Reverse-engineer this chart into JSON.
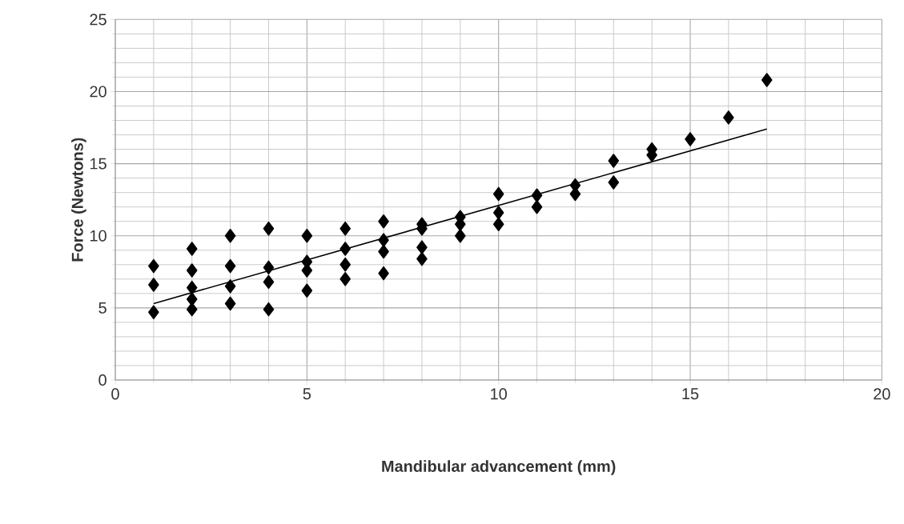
{
  "chart_data": {
    "type": "scatter",
    "xlabel": "Mandibular  advancement (mm)",
    "ylabel": "Force (Newtons)",
    "xlim": [
      0,
      20
    ],
    "xticks": [
      0,
      5,
      10,
      15,
      20
    ],
    "ylim": [
      0,
      25
    ],
    "yticks": [
      0,
      5,
      10,
      15,
      20,
      25
    ],
    "grid": true,
    "marker": "diamond",
    "series": [
      {
        "color": "#000000",
        "x": [
          1,
          1,
          1,
          2,
          2,
          2,
          2,
          2,
          3,
          3,
          3,
          3,
          4,
          4,
          4,
          4,
          5,
          5,
          5,
          5,
          6,
          6,
          6,
          6,
          7,
          7,
          7,
          7,
          8,
          8,
          8,
          8,
          9,
          9,
          9,
          10,
          10,
          10,
          11,
          11,
          12,
          12,
          13,
          13,
          14,
          14,
          15,
          16,
          17
        ],
        "values": [
          7.9,
          6.6,
          4.7,
          9.1,
          7.6,
          6.4,
          5.6,
          4.9,
          10.0,
          7.9,
          6.5,
          5.3,
          10.5,
          7.8,
          6.8,
          4.9,
          10.0,
          8.2,
          7.6,
          6.2,
          10.5,
          9.1,
          8.0,
          7.0,
          11.0,
          9.7,
          8.9,
          7.4,
          10.8,
          10.5,
          9.2,
          8.4,
          11.3,
          10.8,
          10.0,
          12.9,
          11.6,
          10.8,
          12.8,
          12.0,
          13.5,
          12.9,
          15.2,
          13.7,
          16.0,
          15.6,
          16.7,
          18.2,
          20.8
        ]
      },
      {
        "type": "line",
        "color": "#000000",
        "marker": "none",
        "x": [
          1,
          17
        ],
        "values": [
          5.3,
          17.4
        ]
      }
    ]
  }
}
